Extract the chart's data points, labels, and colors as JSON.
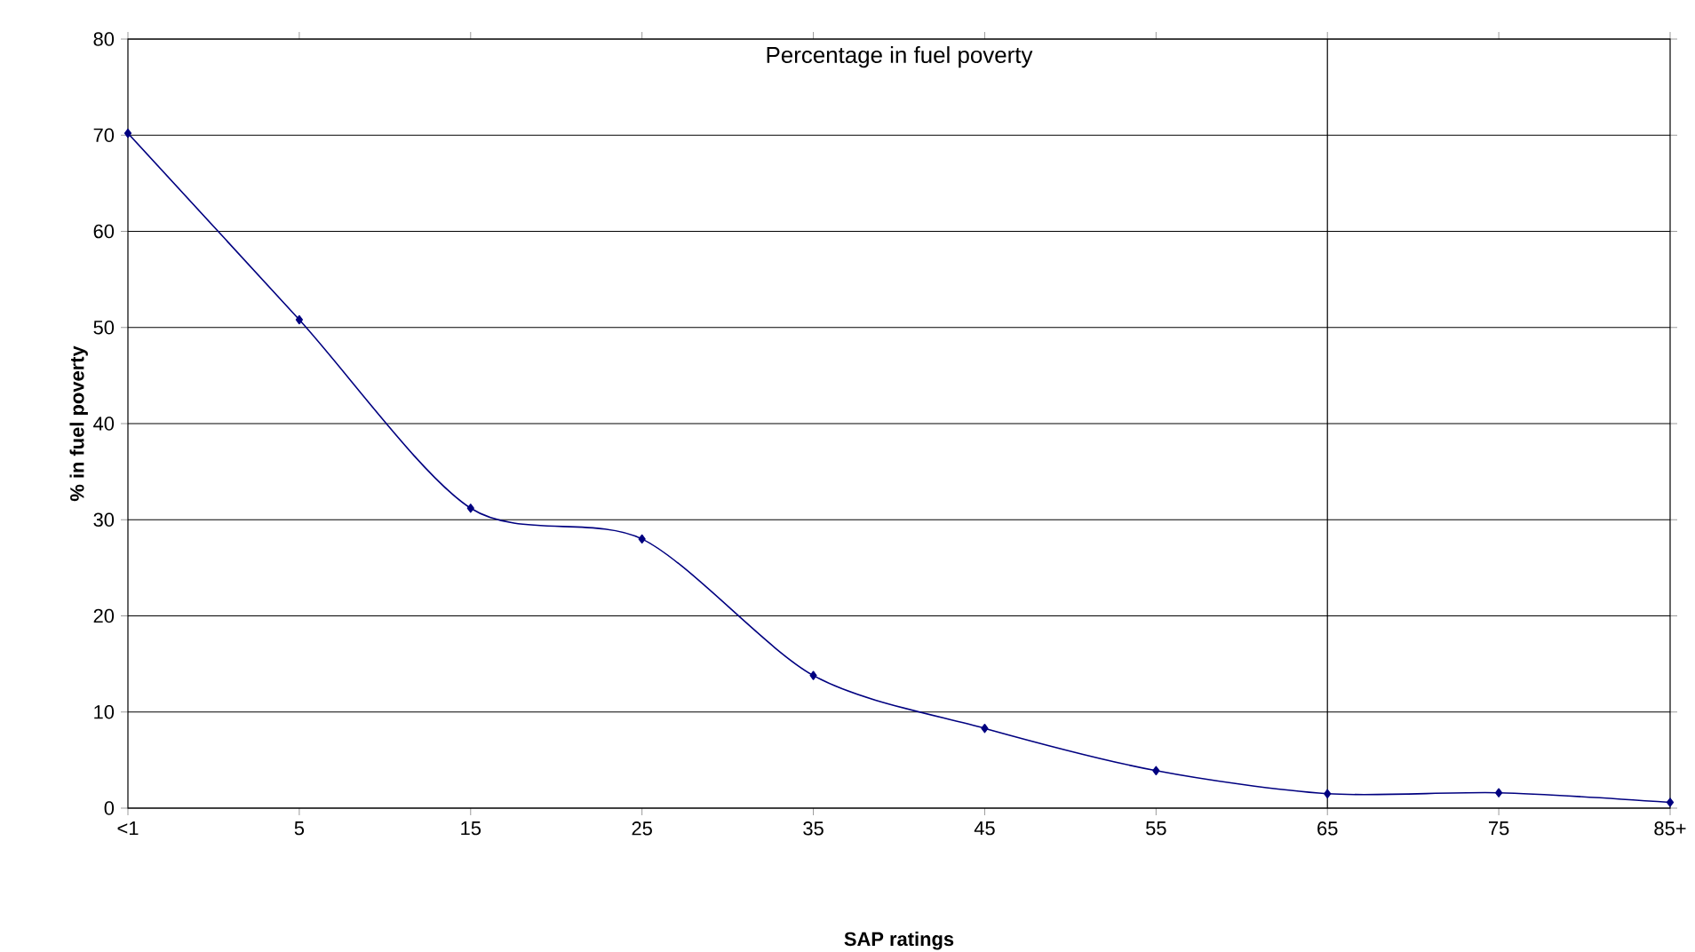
{
  "chart_data": {
    "type": "line",
    "title": "Percentage in fuel poverty",
    "xlabel": "SAP ratings",
    "ylabel": "% in fuel poverty",
    "categories": [
      "<1",
      "5",
      "15",
      "25",
      "35",
      "45",
      "55",
      "65",
      "75",
      "85+"
    ],
    "series": [
      {
        "color": "#000080",
        "values": [
          70.2,
          50.8,
          31.2,
          28.0,
          13.8,
          8.3,
          3.9,
          1.5,
          1.6,
          0.6
        ]
      }
    ],
    "ylim": [
      0,
      80
    ],
    "yticks": [
      0,
      10,
      20,
      30,
      40,
      50,
      60,
      70,
      80
    ],
    "ref_lines": [
      {
        "axis": "x",
        "value": "65",
        "color": "#000000"
      }
    ],
    "grid": "y",
    "marker": "diamond",
    "line_style": "solid"
  }
}
